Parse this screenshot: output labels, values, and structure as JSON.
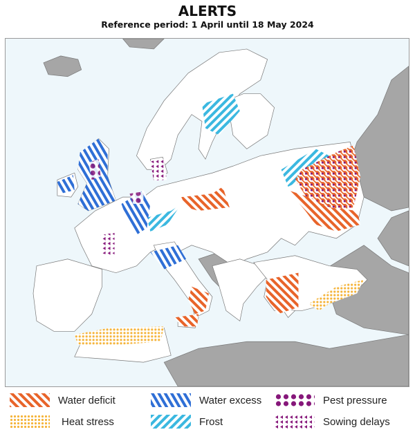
{
  "header": {
    "title": "ALERTS",
    "subtitle": "Reference period: 1 April until 18 May 2024"
  },
  "colors": {
    "sea": "#eef7fb",
    "land": "#ffffff",
    "non_covered_land": "#a6a6a6",
    "border": "#777777",
    "water_deficit": "#e8642a",
    "heat_stress": "#f5b43a",
    "water_excess": "#2f6fd6",
    "frost": "#3bb8e0",
    "pest_pressure": "#86177a",
    "sowing_delays": "#86177a"
  },
  "legend": [
    {
      "label": "Water deficit",
      "icon": "diagonal-stripes-orange"
    },
    {
      "label": "Heat stress",
      "icon": "dots-yellow"
    },
    {
      "label": "Water excess",
      "icon": "diagonal-stripes-blue"
    },
    {
      "label": "Frost",
      "icon": "diagonal-stripes-cyan"
    },
    {
      "label": "Pest pressure",
      "icon": "dots-purple"
    },
    {
      "label": "Sowing delays",
      "icon": "triangles-purple"
    }
  ]
}
